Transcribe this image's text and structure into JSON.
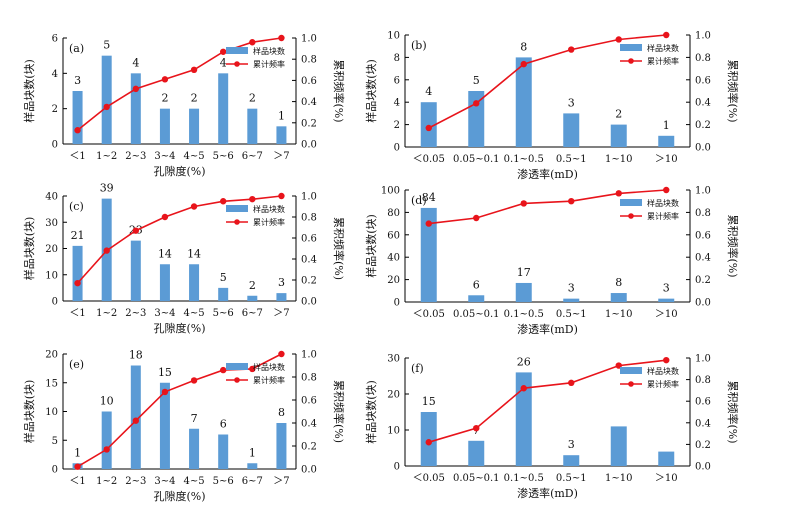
{
  "legend": {
    "bar_label": "样品块数",
    "line_label": "累计频率"
  },
  "colors": {
    "bar": "#5b9bd5",
    "line": "#e8141b"
  },
  "chart_data": [
    {
      "id": "a",
      "panel_label": "(a)",
      "type": "bar",
      "categories": [
        "＜1",
        "1~2",
        "2~3",
        "3~4",
        "4~5",
        "5~6",
        "6~7",
        "＞7"
      ],
      "xlabel": "孔隙度(%)",
      "ylabel": "样品块数(块)",
      "y2label": "累积频率(%)",
      "ylim": [
        0,
        6
      ],
      "yticks": [
        0,
        2,
        4,
        6
      ],
      "y2lim": [
        0,
        1
      ],
      "y2ticks": [
        "0.0",
        "0.2",
        "0.4",
        "0.6",
        "0.8",
        "1.0"
      ],
      "series": [
        {
          "name": "样品块数",
          "type": "bar",
          "values": [
            3,
            5,
            4,
            2,
            2,
            4,
            2,
            1
          ],
          "data_labels": [
            "3",
            "5",
            "4",
            "2",
            "2",
            "4",
            "2",
            "1"
          ]
        },
        {
          "name": "累计频率",
          "type": "line",
          "values": [
            0.13,
            0.35,
            0.52,
            0.61,
            0.7,
            0.87,
            0.96,
            1.0
          ]
        }
      ]
    },
    {
      "id": "b",
      "panel_label": "(b)",
      "type": "bar",
      "categories": [
        "＜0.05",
        "0.05~0.1",
        "0.1~0.5",
        "0.5~1",
        "1~10",
        "＞10"
      ],
      "xlabel": "渗透率(mD)",
      "ylabel": "样品块数(块)",
      "y2label": "累积频率(%)",
      "ylim": [
        0,
        10
      ],
      "yticks": [
        0,
        2,
        4,
        6,
        8,
        10
      ],
      "y2lim": [
        0,
        1
      ],
      "y2ticks": [
        "0.0",
        "0.2",
        "0.4",
        "0.6",
        "0.8",
        "1.0"
      ],
      "series": [
        {
          "name": "样品块数",
          "type": "bar",
          "values": [
            4,
            5,
            8,
            3,
            2,
            1
          ],
          "data_labels": [
            "4",
            "5",
            "8",
            "3",
            "2",
            "1"
          ]
        },
        {
          "name": "累计频率",
          "type": "line",
          "values": [
            0.17,
            0.39,
            0.74,
            0.87,
            0.96,
            1.0
          ]
        }
      ]
    },
    {
      "id": "c",
      "panel_label": "(c)",
      "type": "bar",
      "categories": [
        "＜1",
        "1~2",
        "2~3",
        "3~4",
        "4~5",
        "5~6",
        "6~7",
        "＞7"
      ],
      "xlabel": "孔隙度(%)",
      "ylabel": "样品块数(块)",
      "y2label": "累积频率(%)",
      "ylim": [
        0,
        40
      ],
      "yticks": [
        0,
        10,
        20,
        30,
        40
      ],
      "y2lim": [
        0,
        1
      ],
      "y2ticks": [
        "0.0",
        "0.2",
        "0.4",
        "0.6",
        "0.8",
        "1.0"
      ],
      "series": [
        {
          "name": "样品块数",
          "type": "bar",
          "values": [
            21,
            39,
            23,
            14,
            14,
            5,
            2,
            3
          ],
          "data_labels": [
            "21",
            "39",
            "23",
            "14",
            "14",
            "5",
            "2",
            "3"
          ]
        },
        {
          "name": "累计频率",
          "type": "line",
          "values": [
            0.17,
            0.48,
            0.67,
            0.8,
            0.9,
            0.95,
            0.97,
            1.0
          ]
        }
      ]
    },
    {
      "id": "d",
      "panel_label": "(d)",
      "type": "bar",
      "categories": [
        "＜0.05",
        "0.05~0.1",
        "0.1~0.5",
        "0.5~1",
        "1~10",
        "＞10"
      ],
      "xlabel": "渗透率(mD)",
      "ylabel": "样品块数(块)",
      "y2label": "累积频率(%)",
      "ylim": [
        0,
        100
      ],
      "yticks": [
        0,
        20,
        40,
        60,
        80,
        100
      ],
      "y2lim": [
        0,
        1
      ],
      "y2ticks": [
        "0.0",
        "0.2",
        "0.4",
        "0.6",
        "0.8",
        "1.0"
      ],
      "series": [
        {
          "name": "样品块数",
          "type": "bar",
          "values": [
            84,
            6,
            17,
            3,
            8,
            3
          ],
          "data_labels": [
            "84",
            "6",
            "17",
            "3",
            "8",
            "3"
          ]
        },
        {
          "name": "累计频率",
          "type": "line",
          "values": [
            0.7,
            0.75,
            0.88,
            0.9,
            0.97,
            1.0
          ]
        }
      ]
    },
    {
      "id": "e",
      "panel_label": "(e)",
      "type": "bar",
      "categories": [
        "＜1",
        "1~2",
        "2~3",
        "3~4",
        "4~5",
        "5~6",
        "6~7",
        "＞7"
      ],
      "xlabel": "孔隙度(%)",
      "ylabel": "样品块数(块)",
      "y2label": "累积频率(%)",
      "ylim": [
        0,
        20
      ],
      "yticks": [
        0,
        5,
        10,
        15,
        20
      ],
      "y2lim": [
        0,
        1
      ],
      "y2ticks": [
        "0.0",
        "0.2",
        "0.4",
        "0.6",
        "0.8",
        "1.0"
      ],
      "series": [
        {
          "name": "样品块数",
          "type": "bar",
          "values": [
            1,
            10,
            18,
            15,
            7,
            6,
            1,
            8
          ],
          "data_labels": [
            "1",
            "10",
            "18",
            "15",
            "7",
            "6",
            "1",
            "8"
          ]
        },
        {
          "name": "累计频率",
          "type": "line",
          "values": [
            0.02,
            0.17,
            0.42,
            0.67,
            0.77,
            0.86,
            0.87,
            1.0
          ]
        }
      ]
    },
    {
      "id": "f",
      "panel_label": "(f)",
      "type": "bar",
      "categories": [
        "＜0.05",
        "0.05~0.1",
        "0.1~0.5",
        "0.5~1",
        "1~10",
        "＞10"
      ],
      "xlabel": "渗透率(mD)",
      "ylabel": "样品块数(块)",
      "y2label": "累积频率(%)",
      "ylim": [
        0,
        30
      ],
      "yticks": [
        0,
        10,
        20,
        30
      ],
      "y2lim": [
        0,
        1
      ],
      "y2ticks": [
        "0.0",
        "0.2",
        "0.4",
        "0.6",
        "0.8",
        "1.0"
      ],
      "series": [
        {
          "name": "样品块数",
          "type": "bar",
          "values": [
            15,
            7,
            26,
            3,
            11,
            4
          ],
          "data_labels": [
            "15",
            "7",
            "26",
            "3",
            "",
            ""
          ]
        },
        {
          "name": "累计频率",
          "type": "line",
          "values": [
            0.22,
            0.35,
            0.72,
            0.77,
            0.93,
            0.98
          ]
        }
      ]
    }
  ]
}
